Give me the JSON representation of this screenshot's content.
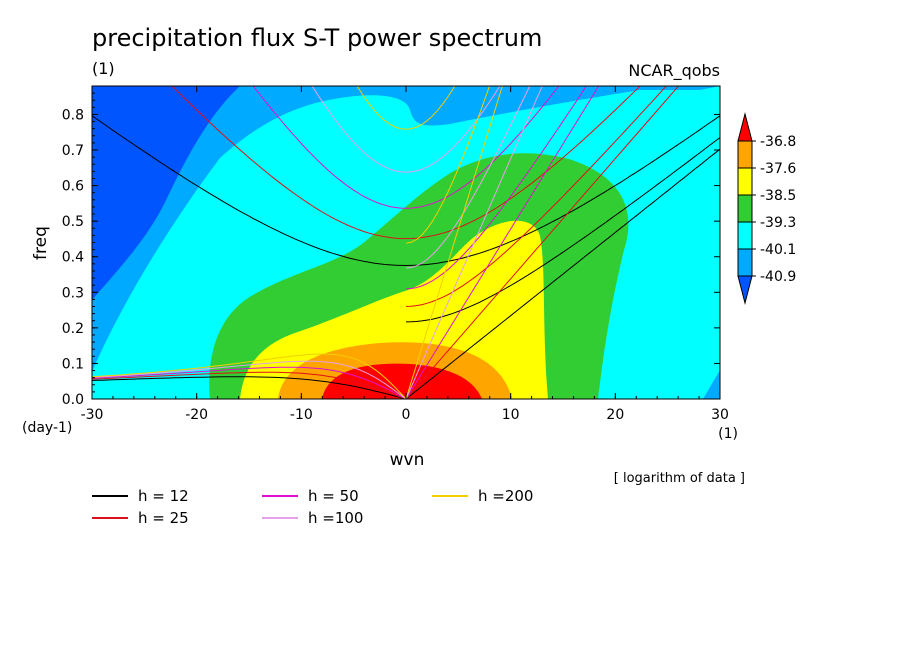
{
  "chart_data": {
    "type": "heatmap",
    "title": "precipitation flux S-T power spectrum",
    "subtitle_left": "(1)",
    "subtitle_right": "NCAR_qobs",
    "xlabel": "wvn",
    "ylabel": "freq",
    "x_unit": "(1)",
    "y_unit": "(day-1)",
    "note": "[ logarithm of data ]",
    "xlim": [
      -30,
      30
    ],
    "ylim": [
      0,
      0.88
    ],
    "x_ticks": [
      "-30",
      "-20",
      "-10",
      "0",
      "10",
      "20",
      "30"
    ],
    "y_ticks": [
      "0.0",
      "0.1",
      "0.2",
      "0.3",
      "0.4",
      "0.5",
      "0.6",
      "0.7",
      "0.8"
    ],
    "colorbar": {
      "levels": [
        "-36.8",
        "-37.6",
        "-38.5",
        "-39.3",
        "-40.1",
        "-40.9"
      ],
      "colors": [
        "#ff0000",
        "#ffa500",
        "#ffff00",
        "#32cd32",
        "#00ffff",
        "#00aaff",
        "#0055ff"
      ]
    },
    "dispersion_curves": [
      {
        "name": "h = 12",
        "h": 12,
        "color": "#000000"
      },
      {
        "name": "h = 25",
        "h": 25,
        "color": "#e0101a"
      },
      {
        "name": "h = 50",
        "h": 50,
        "color": "#e010d0"
      },
      {
        "name": "h =100",
        "h": 100,
        "color": "#e8a0e8"
      },
      {
        "name": "h =200",
        "h": 200,
        "color": "#f0d000"
      }
    ],
    "background": "#00aaff"
  }
}
